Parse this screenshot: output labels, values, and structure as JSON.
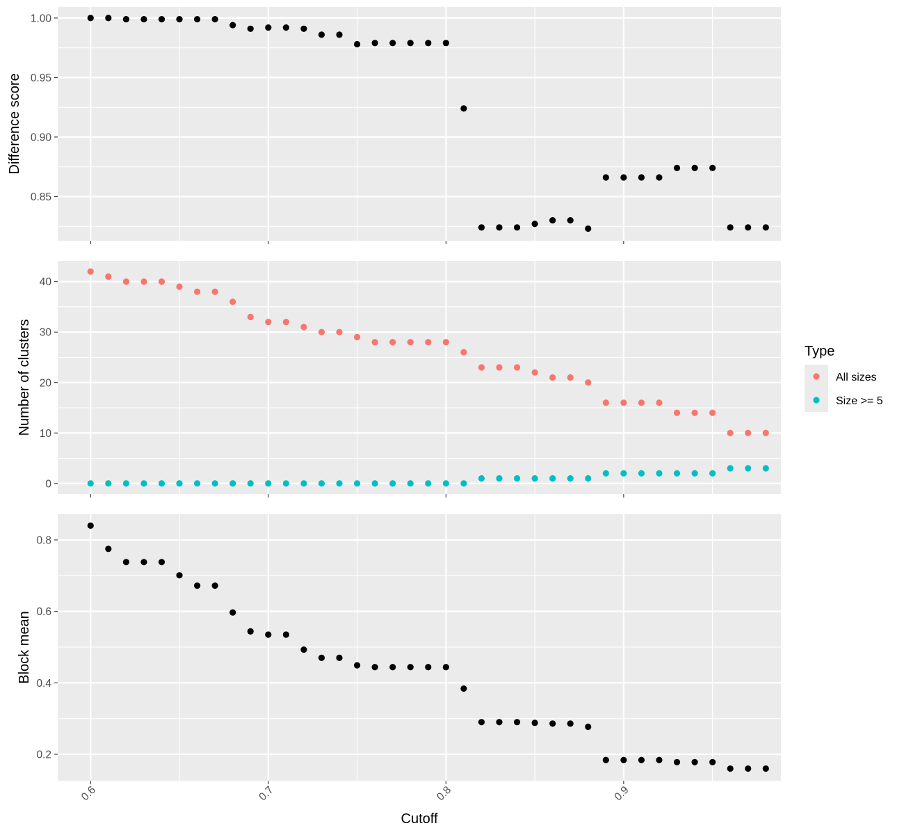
{
  "colors": {
    "panel_bg": "#EBEBEB",
    "grid": "#FFFFFF",
    "tick_text": "#4D4D4D",
    "point_black": "#000000",
    "all_sizes": "#F8766D",
    "size_ge5": "#00BFC4"
  },
  "chart_data": {
    "type": "scatter",
    "xlabel": "Cutoff",
    "x_ticks": [
      "0.6",
      "0.7",
      "0.8",
      "0.9"
    ],
    "x_tick_values": [
      0.6,
      0.7,
      0.8,
      0.9
    ],
    "xlim": [
      0.5815,
      0.9885
    ],
    "legend": {
      "title": "Type",
      "position": "right",
      "entries": [
        {
          "label": "All sizes",
          "color": "#F8766D"
        },
        {
          "label": "Size >= 5",
          "color": "#00BFC4"
        }
      ]
    },
    "x": [
      0.6,
      0.61,
      0.62,
      0.63,
      0.64,
      0.65,
      0.66,
      0.67,
      0.68,
      0.69,
      0.7,
      0.71,
      0.72,
      0.73,
      0.74,
      0.75,
      0.76,
      0.77,
      0.78,
      0.79,
      0.8,
      0.81,
      0.82,
      0.83,
      0.84,
      0.85,
      0.86,
      0.87,
      0.88,
      0.89,
      0.9,
      0.91,
      0.92,
      0.93,
      0.94,
      0.95,
      0.96,
      0.97,
      0.98
    ],
    "panels": [
      {
        "ylabel": "Difference score",
        "ylim": [
          0.8128,
          1.0093
        ],
        "y_ticks": [
          "0.85",
          "0.90",
          "0.95",
          "1.00"
        ],
        "y_tick_values": [
          0.85,
          0.9,
          0.95,
          1.0
        ],
        "series": [
          {
            "color": "#000000",
            "values": [
              1.0,
              1.0,
              0.999,
              0.999,
              0.999,
              0.999,
              0.999,
              0.999,
              0.994,
              0.991,
              0.992,
              0.992,
              0.991,
              0.986,
              0.986,
              0.978,
              0.979,
              0.979,
              0.979,
              0.979,
              0.979,
              0.924,
              0.824,
              0.824,
              0.824,
              0.827,
              0.83,
              0.83,
              0.823,
              0.866,
              0.866,
              0.866,
              0.866,
              0.874,
              0.874,
              0.874,
              0.824,
              0.824,
              0.824
            ]
          }
        ]
      },
      {
        "ylabel": "Number of clusters",
        "ylim": [
          -2.1,
          44.1
        ],
        "y_ticks": [
          "0",
          "10",
          "20",
          "30",
          "40"
        ],
        "y_tick_values": [
          0,
          10,
          20,
          30,
          40
        ],
        "series": [
          {
            "name": "All sizes",
            "color": "#F8766D",
            "values": [
              42,
              41,
              40,
              40,
              40,
              39,
              38,
              38,
              36,
              33,
              32,
              32,
              31,
              30,
              30,
              29,
              28,
              28,
              28,
              28,
              28,
              26,
              23,
              23,
              23,
              22,
              21,
              21,
              20,
              16,
              16,
              16,
              16,
              14,
              14,
              14,
              10,
              10,
              10
            ]
          },
          {
            "name": "Size >= 5",
            "color": "#00BFC4",
            "values": [
              0,
              0,
              0,
              0,
              0,
              0,
              0,
              0,
              0,
              0,
              0,
              0,
              0,
              0,
              0,
              0,
              0,
              0,
              0,
              0,
              0,
              0,
              1,
              1,
              1,
              1,
              1,
              1,
              1,
              2,
              2,
              2,
              2,
              2,
              2,
              2,
              3,
              3,
              3
            ]
          }
        ]
      },
      {
        "ylabel": "Block mean",
        "ylim": [
          0.126,
          0.872
        ],
        "y_ticks": [
          "0.2",
          "0.4",
          "0.6",
          "0.8"
        ],
        "y_tick_values": [
          0.2,
          0.4,
          0.6,
          0.8
        ],
        "series": [
          {
            "color": "#000000",
            "values": [
              0.84,
              0.775,
              0.738,
              0.738,
              0.738,
              0.701,
              0.672,
              0.672,
              0.597,
              0.544,
              0.535,
              0.535,
              0.493,
              0.47,
              0.47,
              0.449,
              0.444,
              0.444,
              0.444,
              0.444,
              0.444,
              0.384,
              0.29,
              0.29,
              0.29,
              0.288,
              0.286,
              0.286,
              0.277,
              0.184,
              0.184,
              0.184,
              0.184,
              0.178,
              0.178,
              0.178,
              0.16,
              0.16,
              0.16
            ]
          }
        ]
      }
    ]
  }
}
